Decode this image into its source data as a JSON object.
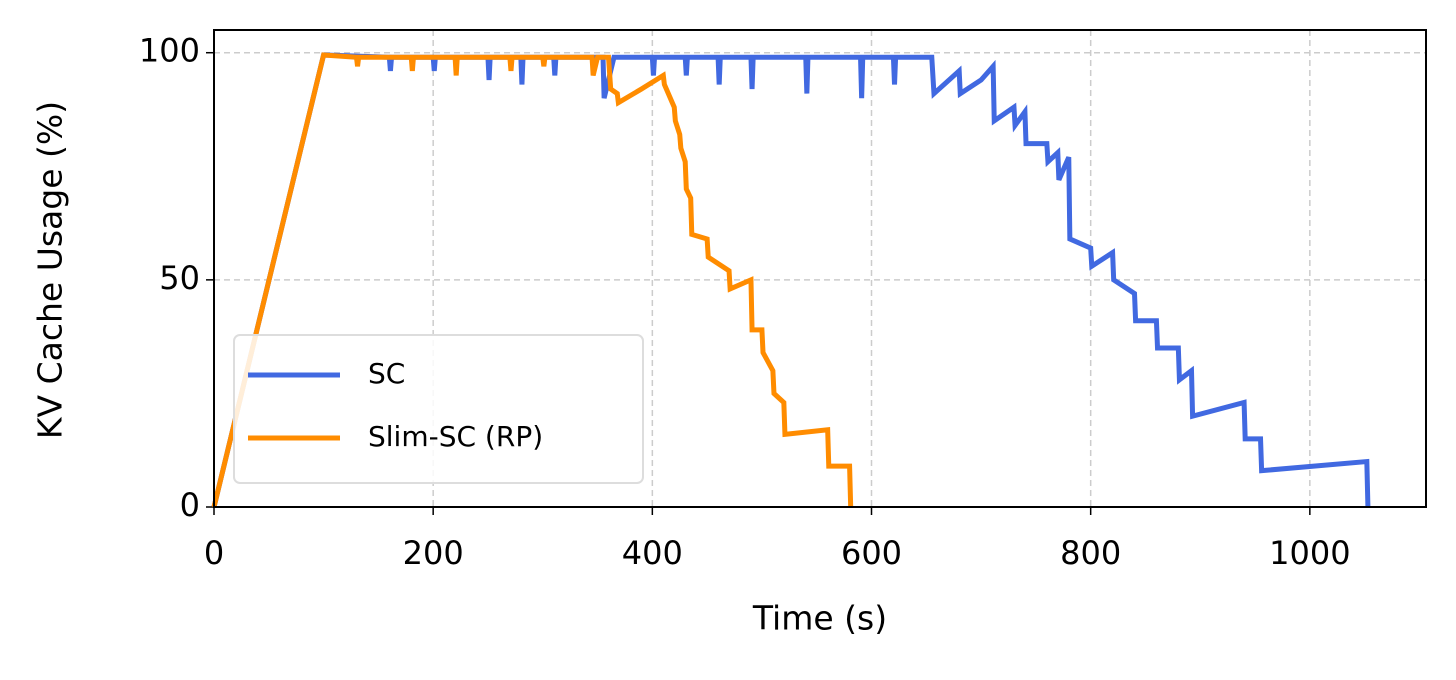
{
  "chart_data": {
    "type": "line",
    "xlabel": "Time (s)",
    "ylabel": "KV Cache Usage (%)",
    "xlim": [
      0,
      1106
    ],
    "ylim": [
      0,
      105
    ],
    "xticks": [
      0,
      200,
      400,
      600,
      800,
      1000
    ],
    "yticks": [
      0,
      50,
      100
    ],
    "grid": true,
    "legend": "lower left",
    "series": [
      {
        "name": "SC",
        "color": "#4169e1",
        "x": [
          0,
          100,
          160,
          161,
          162,
          200,
          201,
          202,
          250,
          251,
          252,
          280,
          281,
          282,
          310,
          311,
          312,
          355,
          356,
          365,
          400,
          401,
          402,
          430,
          431,
          432,
          460,
          461,
          462,
          490,
          491,
          492,
          540,
          541,
          542,
          590,
          591,
          592,
          620,
          621,
          622,
          655,
          657,
          680,
          681,
          700,
          711,
          712,
          730,
          731,
          740,
          741,
          760,
          761,
          770,
          771,
          780,
          781,
          800,
          801,
          820,
          821,
          840,
          841,
          860,
          861,
          880,
          881,
          892,
          893,
          940,
          941,
          955,
          956,
          1052,
          1053
        ],
        "values": [
          0,
          99.5,
          99,
          96,
          99,
          99,
          96,
          99,
          99,
          94,
          99,
          99,
          93,
          99,
          99,
          95,
          99,
          99,
          90,
          99,
          99,
          95,
          99,
          99,
          95,
          99,
          99,
          93,
          99,
          99,
          92,
          99,
          99,
          91,
          99,
          99,
          90,
          99,
          99,
          93,
          99,
          99,
          91,
          96,
          91,
          94,
          97,
          85,
          88,
          84,
          87,
          80,
          80,
          76,
          78,
          72,
          77,
          59,
          57,
          53,
          56,
          50,
          47,
          41,
          41,
          35,
          35,
          28,
          30,
          20,
          23,
          15,
          15,
          8,
          10,
          0
        ]
      },
      {
        "name": "Slim-SC (RP)",
        "color": "#ff8c00",
        "x": [
          0,
          100,
          130,
          131,
          132,
          180,
          181,
          182,
          220,
          221,
          222,
          270,
          271,
          272,
          300,
          301,
          302,
          345,
          346,
          350,
          360,
          362,
          368,
          369,
          390,
          410,
          411,
          420,
          421,
          425,
          426,
          430,
          431,
          435,
          436,
          450,
          451,
          470,
          471,
          490,
          491,
          500,
          501,
          510,
          511,
          520,
          521,
          560,
          561,
          580,
          581
        ],
        "values": [
          0,
          99.5,
          99,
          97,
          99,
          99,
          96,
          99,
          99,
          95,
          99,
          99,
          96,
          99,
          99,
          97,
          99,
          99,
          95,
          99,
          99,
          92,
          91,
          89,
          92,
          95,
          93,
          88,
          85,
          82,
          79,
          76,
          70,
          68,
          60,
          59,
          55,
          52,
          48,
          50,
          39,
          39,
          34,
          30,
          25,
          23,
          16,
          17,
          9,
          9,
          0
        ]
      }
    ]
  }
}
